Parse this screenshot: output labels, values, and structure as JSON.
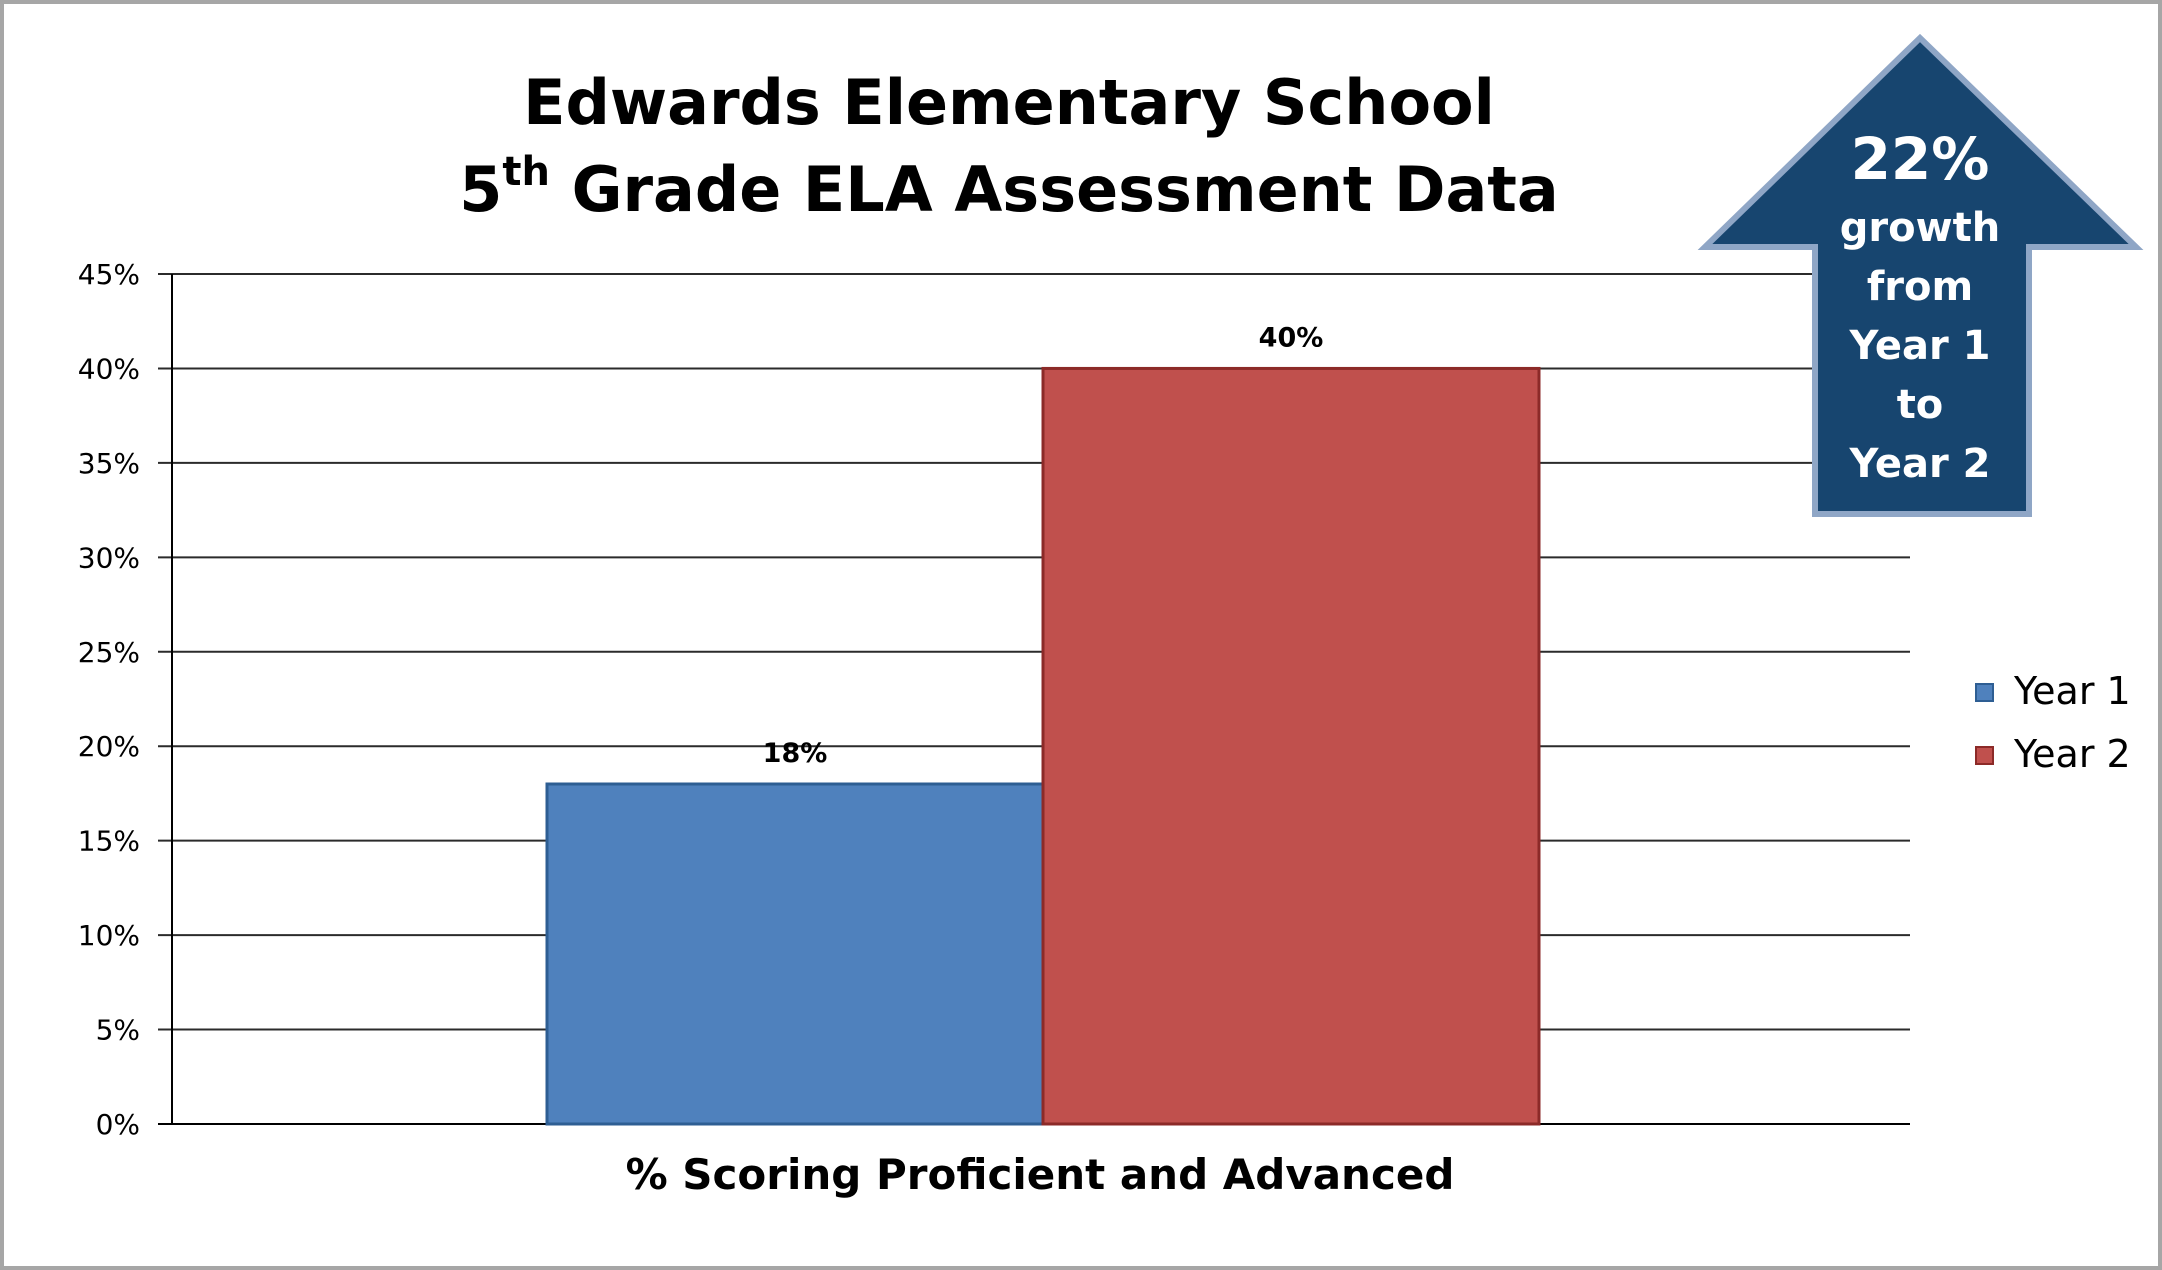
{
  "chart_data": {
    "type": "bar",
    "title_line1": "Edwards Elementary School",
    "title_line2_main": "5",
    "title_line2_sup": "th",
    "title_line2_rest": " Grade ELA Assessment Data",
    "xlabel": "% Scoring Proficient and Advanced",
    "ylim": [
      0,
      45
    ],
    "yticks": [
      "0%",
      "5%",
      "10%",
      "15%",
      "20%",
      "25%",
      "30%",
      "35%",
      "40%",
      "45%"
    ],
    "grid": true,
    "legend_position": "right",
    "series": [
      {
        "name": "Year 1",
        "value": 18,
        "label": "18%",
        "color": "#4f81bd",
        "edge": "#2e5e93"
      },
      {
        "name": "Year 2",
        "value": 40,
        "label": "40%",
        "color": "#c0504d",
        "edge": "#8c2a28"
      }
    ]
  },
  "callout": {
    "headline": "22%",
    "lines": [
      "growth",
      "from",
      "Year 1",
      "to",
      "Year 2"
    ],
    "fill": "#17456f",
    "stroke": "#8fa6c6"
  }
}
